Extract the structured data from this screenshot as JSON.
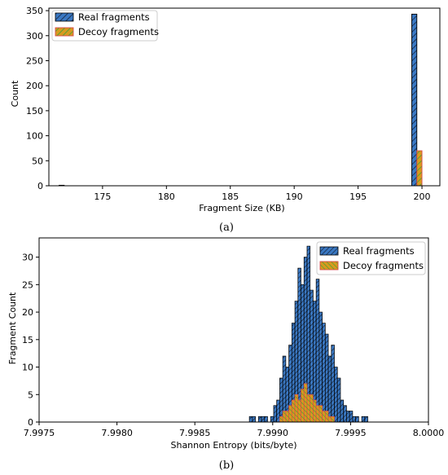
{
  "chart_data": [
    {
      "type": "bar",
      "subtype": "histogram",
      "panel_label": "(a)",
      "xlabel": "Fragment Size (KB)",
      "ylabel": "Count",
      "xlim": [
        170.8,
        201.4
      ],
      "ylim": [
        0,
        355
      ],
      "xticks": [
        175,
        180,
        185,
        190,
        195,
        200
      ],
      "yticks": [
        0,
        50,
        100,
        150,
        200,
        250,
        300,
        350
      ],
      "grid": false,
      "legend_position": "top-left",
      "bin_width": 0.4,
      "series": [
        {
          "name": "Real fragments",
          "color": "#3a78c3",
          "hatch": "//",
          "bins": [
            {
              "x0": 171.6,
              "x1": 172.0,
              "count": 1
            },
            {
              "x0": 199.2,
              "x1": 199.6,
              "count": 343
            }
          ]
        },
        {
          "name": "Decoy fragments",
          "color": "#d89a1e",
          "edge_color": "#d94b4b",
          "hatch": "//",
          "hatch_color": "#3aa13a",
          "bins": [
            {
              "x0": 199.6,
              "x1": 200.0,
              "count": 70
            }
          ]
        }
      ]
    },
    {
      "type": "bar",
      "subtype": "histogram",
      "panel_label": "(b)",
      "xlabel": "Shannon Entropy (bits/byte)",
      "ylabel": "Fragment Count",
      "xlim": [
        7.9975,
        8.0
      ],
      "ylim": [
        0,
        33.5
      ],
      "xticks": [
        "7.9975",
        "7.9980",
        "7.9985",
        "7.9990",
        "7.9995",
        "8.0000"
      ],
      "yticks": [
        0,
        5,
        10,
        15,
        20,
        25,
        30
      ],
      "grid": false,
      "legend_position": "top-right",
      "bin_start": 7.99885,
      "bin_width": 1.95e-05,
      "series": [
        {
          "name": "Real fragments",
          "color": "#3a78c3",
          "hatch": "//",
          "counts": [
            1,
            1,
            0,
            1,
            1,
            1,
            0,
            1,
            3,
            4,
            8,
            12,
            10,
            14,
            18,
            22,
            28,
            25,
            30,
            32,
            24,
            22,
            26,
            20,
            18,
            16,
            12,
            14,
            10,
            8,
            4,
            3,
            2,
            2,
            1,
            1,
            0,
            1,
            1
          ]
        },
        {
          "name": "Decoy fragments",
          "color": "#d89a1e",
          "edge_color": "#d94b4b",
          "hatch": "\\\\",
          "hatch_color": "#3aa13a",
          "counts": [
            0,
            0,
            0,
            0,
            0,
            0,
            0,
            0,
            0,
            0,
            1,
            2,
            2,
            3,
            4,
            5,
            4,
            6,
            7,
            5,
            5,
            4,
            3,
            3,
            2,
            2,
            1,
            1,
            0,
            0,
            0,
            0,
            0,
            0,
            0,
            0,
            0,
            0,
            0
          ]
        }
      ]
    }
  ]
}
